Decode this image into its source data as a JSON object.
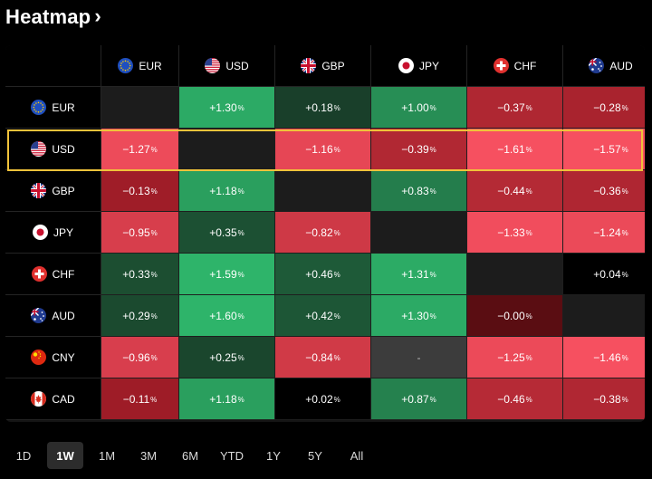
{
  "title": "Heatmap",
  "currencies": [
    {
      "code": "EUR",
      "flag": "eu-flag-icon"
    },
    {
      "code": "USD",
      "flag": "us-flag-icon"
    },
    {
      "code": "GBP",
      "flag": "uk-flag-icon"
    },
    {
      "code": "JPY",
      "flag": "jp-flag-icon"
    },
    {
      "code": "CHF",
      "flag": "ch-flag-icon"
    },
    {
      "code": "AUD",
      "flag": "au-flag-icon"
    }
  ],
  "rows": [
    {
      "code": "EUR",
      "flag": "eu-flag-icon",
      "cells": [
        null,
        "+1.30",
        "+0.18",
        "+1.00",
        "−0.37",
        "−0.28"
      ]
    },
    {
      "code": "USD",
      "flag": "us-flag-icon",
      "cells": [
        "−1.27",
        null,
        "−1.16",
        "−0.39",
        "−1.61",
        "−1.57"
      ]
    },
    {
      "code": "GBP",
      "flag": "uk-flag-icon",
      "cells": [
        "−0.13",
        "+1.18",
        null,
        "+0.83",
        "−0.44",
        "−0.36"
      ]
    },
    {
      "code": "JPY",
      "flag": "jp-flag-icon",
      "cells": [
        "−0.95",
        "+0.35",
        "−0.82",
        null,
        "−1.33",
        "−1.24"
      ]
    },
    {
      "code": "CHF",
      "flag": "ch-flag-icon",
      "cells": [
        "+0.33",
        "+1.59",
        "+0.46",
        "+1.31",
        null,
        "+0.04"
      ]
    },
    {
      "code": "AUD",
      "flag": "au-flag-icon",
      "cells": [
        "+0.29",
        "+1.60",
        "+0.42",
        "+1.30",
        "−0.00",
        null
      ]
    },
    {
      "code": "CNY",
      "flag": "cn-flag-icon",
      "cells": [
        "−0.96",
        "+0.25",
        "−0.84",
        "-",
        "−1.25",
        "−1.46"
      ]
    },
    {
      "code": "CAD",
      "flag": "ca-flag-icon",
      "cells": [
        "−0.11",
        "+1.18",
        "+0.02",
        "+0.87",
        "−0.46",
        "−0.38"
      ]
    }
  ],
  "pct_sign": "%",
  "highlighted_row": "USD",
  "colors": {
    "highlight": "#f0c23a",
    "pos_strong": "#2db36a",
    "neg_strong": "#f5505f"
  },
  "tabs": [
    "1D",
    "1W",
    "1M",
    "3M",
    "6M",
    "YTD",
    "1Y",
    "5Y",
    "All"
  ],
  "active_tab": "1W"
}
